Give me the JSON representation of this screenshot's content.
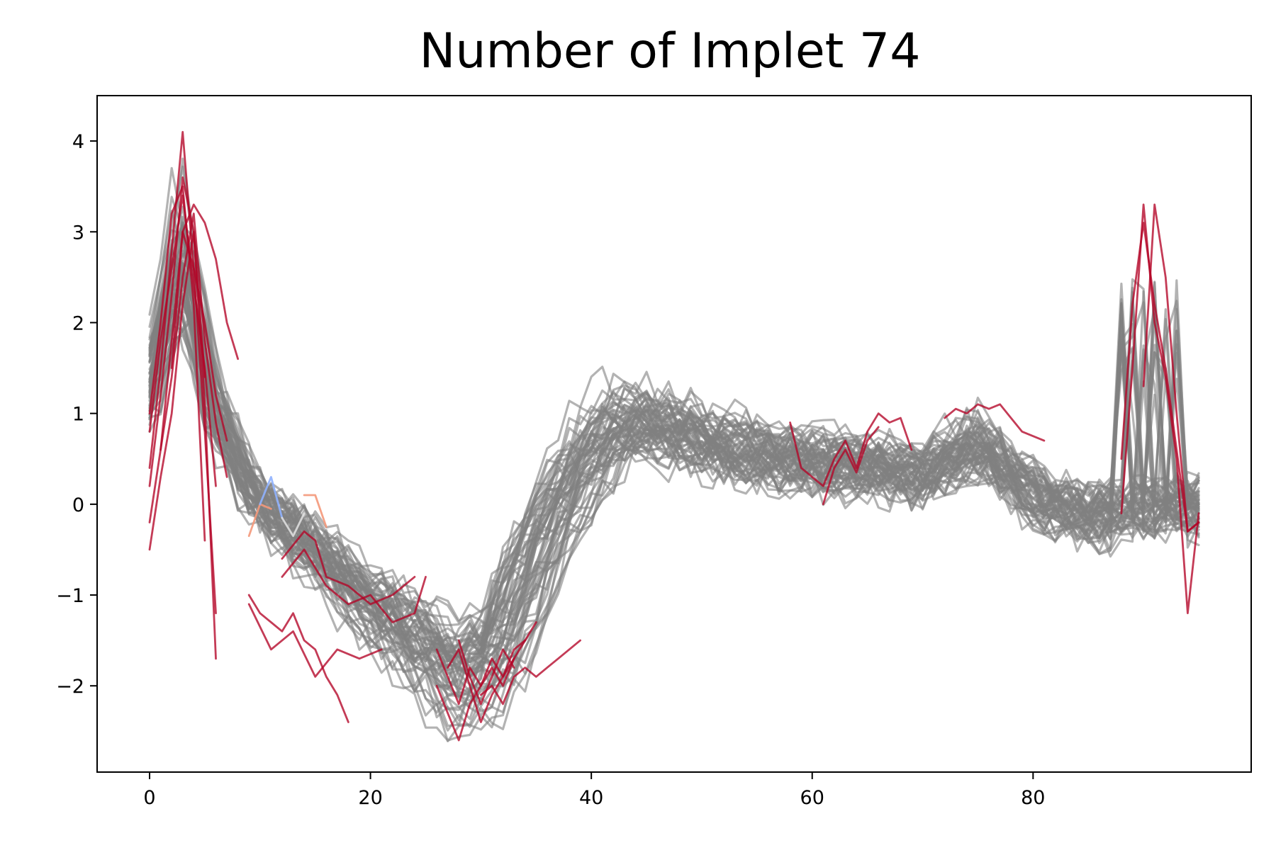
{
  "chart_data": {
    "type": "line",
    "title": "Number of Implet 74",
    "xlabel": "",
    "ylabel": "",
    "xlim": [
      -4.75,
      99.75
    ],
    "ylim": [
      -2.95,
      4.5
    ],
    "grid": false,
    "x_ticks": [
      0,
      20,
      40,
      60,
      80
    ],
    "x_tick_labels": [
      "0",
      "20",
      "40",
      "60",
      "80"
    ],
    "y_ticks": [
      -2,
      -1,
      0,
      1,
      2,
      3,
      4
    ],
    "y_tick_labels": [
      "−2",
      "−1",
      "0",
      "1",
      "2",
      "3",
      "4"
    ],
    "colors": {
      "background_series": "#808080",
      "implet": "#b40426",
      "implet_blue": "#8fb1fe",
      "implet_light": "#dddddd",
      "implet_orange": "#f4987a"
    },
    "background_template": {
      "x": [
        0,
        3,
        6,
        10,
        15,
        20,
        25,
        28,
        32,
        36,
        40,
        44,
        50,
        55,
        60,
        65,
        70,
        75,
        80,
        85,
        90,
        93,
        95
      ],
      "y": [
        1.2,
        2.8,
        1.0,
        0.0,
        -0.5,
        -1.1,
        -1.6,
        -1.9,
        -1.6,
        -0.4,
        0.5,
        0.95,
        0.7,
        0.55,
        0.45,
        0.4,
        0.3,
        0.65,
        0.1,
        -0.15,
        -0.05,
        -0.05,
        -0.05
      ]
    },
    "background_series_count": 60,
    "series": [
      {
        "x": [
          0,
          1,
          2,
          3,
          4,
          5,
          6
        ],
        "y": [
          0.4,
          1.5,
          2.8,
          4.1,
          2.6,
          0.8,
          -1.2
        ]
      },
      {
        "x": [
          0,
          1,
          2,
          3,
          4,
          5,
          6
        ],
        "y": [
          0.2,
          1.2,
          2.3,
          3.6,
          3.0,
          1.1,
          -1.7
        ]
      },
      {
        "x": [
          0,
          1,
          2,
          3,
          4,
          5
        ],
        "y": [
          1.0,
          2.0,
          3.2,
          3.5,
          2.2,
          -0.4
        ]
      },
      {
        "x": [
          0,
          1,
          2,
          3,
          4,
          5,
          6,
          7,
          8
        ],
        "y": [
          -0.2,
          0.6,
          1.8,
          3.0,
          3.3,
          3.1,
          2.7,
          2.0,
          1.6
        ]
      },
      {
        "x": [
          0,
          1,
          2,
          3,
          4,
          5,
          6
        ],
        "y": [
          0.8,
          1.8,
          2.6,
          3.4,
          2.4,
          1.5,
          0.2
        ]
      },
      {
        "x": [
          1,
          2,
          3,
          4,
          5,
          6,
          7
        ],
        "y": [
          0.6,
          1.4,
          2.5,
          3.2,
          1.8,
          0.9,
          0.3
        ]
      },
      {
        "x": [
          0,
          1,
          2,
          3,
          4,
          5
        ],
        "y": [
          -0.5,
          0.3,
          1.0,
          2.2,
          3.0,
          1.4
        ]
      },
      {
        "x": [
          2,
          3,
          4,
          5,
          6,
          7
        ],
        "y": [
          1.5,
          3.0,
          2.6,
          2.0,
          1.2,
          0.7
        ]
      },
      {
        "x": [
          9,
          10,
          11,
          12,
          13,
          14,
          15,
          16,
          17,
          18
        ],
        "y": [
          -1.0,
          -1.2,
          -1.3,
          -1.4,
          -1.2,
          -1.5,
          -1.6,
          -1.9,
          -2.1,
          -2.4
        ]
      },
      {
        "x": [
          12,
          14,
          15,
          16,
          18,
          20,
          22,
          24
        ],
        "y": [
          -0.6,
          -0.3,
          -0.4,
          -0.8,
          -0.9,
          -1.1,
          -1.0,
          -0.8
        ]
      },
      {
        "x": [
          9,
          11,
          13,
          15,
          17,
          19,
          21
        ],
        "y": [
          -1.1,
          -1.6,
          -1.4,
          -1.9,
          -1.6,
          -1.7,
          -1.6
        ]
      },
      {
        "x": [
          12,
          14,
          16,
          18,
          20,
          22,
          24,
          25
        ],
        "y": [
          -0.8,
          -0.5,
          -0.9,
          -1.1,
          -1.0,
          -1.3,
          -1.2,
          -0.8
        ]
      },
      {
        "x": [
          26,
          27,
          28,
          29,
          30,
          31,
          32,
          33,
          34
        ],
        "y": [
          -1.6,
          -1.9,
          -2.2,
          -1.8,
          -2.0,
          -1.7,
          -1.9,
          -1.6,
          -1.5
        ]
      },
      {
        "x": [
          26,
          27,
          28,
          29,
          30,
          31,
          32,
          33
        ],
        "y": [
          -2.0,
          -2.3,
          -2.6,
          -2.2,
          -2.0,
          -1.8,
          -2.0,
          -1.7
        ]
      },
      {
        "x": [
          27,
          28,
          29,
          30,
          31,
          32,
          33,
          34,
          35
        ],
        "y": [
          -1.8,
          -1.6,
          -2.0,
          -2.4,
          -2.1,
          -1.9,
          -1.7,
          -1.5,
          -1.3
        ]
      },
      {
        "x": [
          28,
          29,
          30,
          31,
          32,
          33
        ],
        "y": [
          -1.5,
          -1.9,
          -2.2,
          -1.9,
          -1.6,
          -1.8
        ]
      },
      {
        "x": [
          30,
          31,
          32,
          33,
          34,
          35,
          36,
          37,
          38,
          39
        ],
        "y": [
          -2.1,
          -2.0,
          -2.2,
          -1.9,
          -1.8,
          -1.9,
          -1.8,
          -1.7,
          -1.6,
          -1.5
        ]
      },
      {
        "x": [
          58,
          59,
          60,
          61,
          62,
          63,
          64,
          65,
          66,
          67,
          68,
          69
        ],
        "y": [
          0.9,
          0.4,
          0.3,
          0.2,
          0.5,
          0.7,
          0.4,
          0.8,
          1.0,
          0.9,
          0.95,
          0.6
        ]
      },
      {
        "x": [
          61,
          62,
          63,
          64,
          65,
          66
        ],
        "y": [
          0.0,
          0.4,
          0.6,
          0.35,
          0.7,
          0.85
        ]
      },
      {
        "x": [
          72,
          73,
          74,
          75,
          76,
          77,
          78,
          79,
          80,
          81
        ],
        "y": [
          0.95,
          1.05,
          1.0,
          1.1,
          1.05,
          1.1,
          0.95,
          0.8,
          0.75,
          0.7
        ]
      },
      {
        "x": [
          88,
          89,
          90,
          91,
          92,
          93,
          94,
          95
        ],
        "y": [
          -0.1,
          1.5,
          3.3,
          2.0,
          1.4,
          0.5,
          -1.2,
          -0.1
        ]
      },
      {
        "x": [
          88,
          89,
          90,
          91,
          92,
          93,
          94,
          95
        ],
        "y": [
          0.5,
          2.2,
          3.1,
          2.2,
          1.5,
          0.6,
          -0.3,
          -0.2
        ]
      },
      {
        "x": [
          90,
          91,
          92,
          93,
          94,
          95
        ],
        "y": [
          1.3,
          3.3,
          2.5,
          1.0,
          -0.3,
          -0.2
        ]
      }
    ],
    "highlight_series": [
      {
        "color_key": "implet_orange",
        "x": [
          9,
          10,
          11
        ],
        "y": [
          -0.35,
          0.0,
          -0.05
        ]
      },
      {
        "color_key": "implet_blue",
        "x": [
          10,
          11,
          12
        ],
        "y": [
          0.0,
          0.3,
          -0.15
        ]
      },
      {
        "color_key": "implet_light",
        "x": [
          12,
          13,
          14
        ],
        "y": [
          -0.15,
          -0.35,
          -0.1
        ]
      },
      {
        "color_key": "implet_orange",
        "x": [
          14,
          15,
          16
        ],
        "y": [
          0.1,
          0.1,
          -0.25
        ]
      }
    ]
  }
}
